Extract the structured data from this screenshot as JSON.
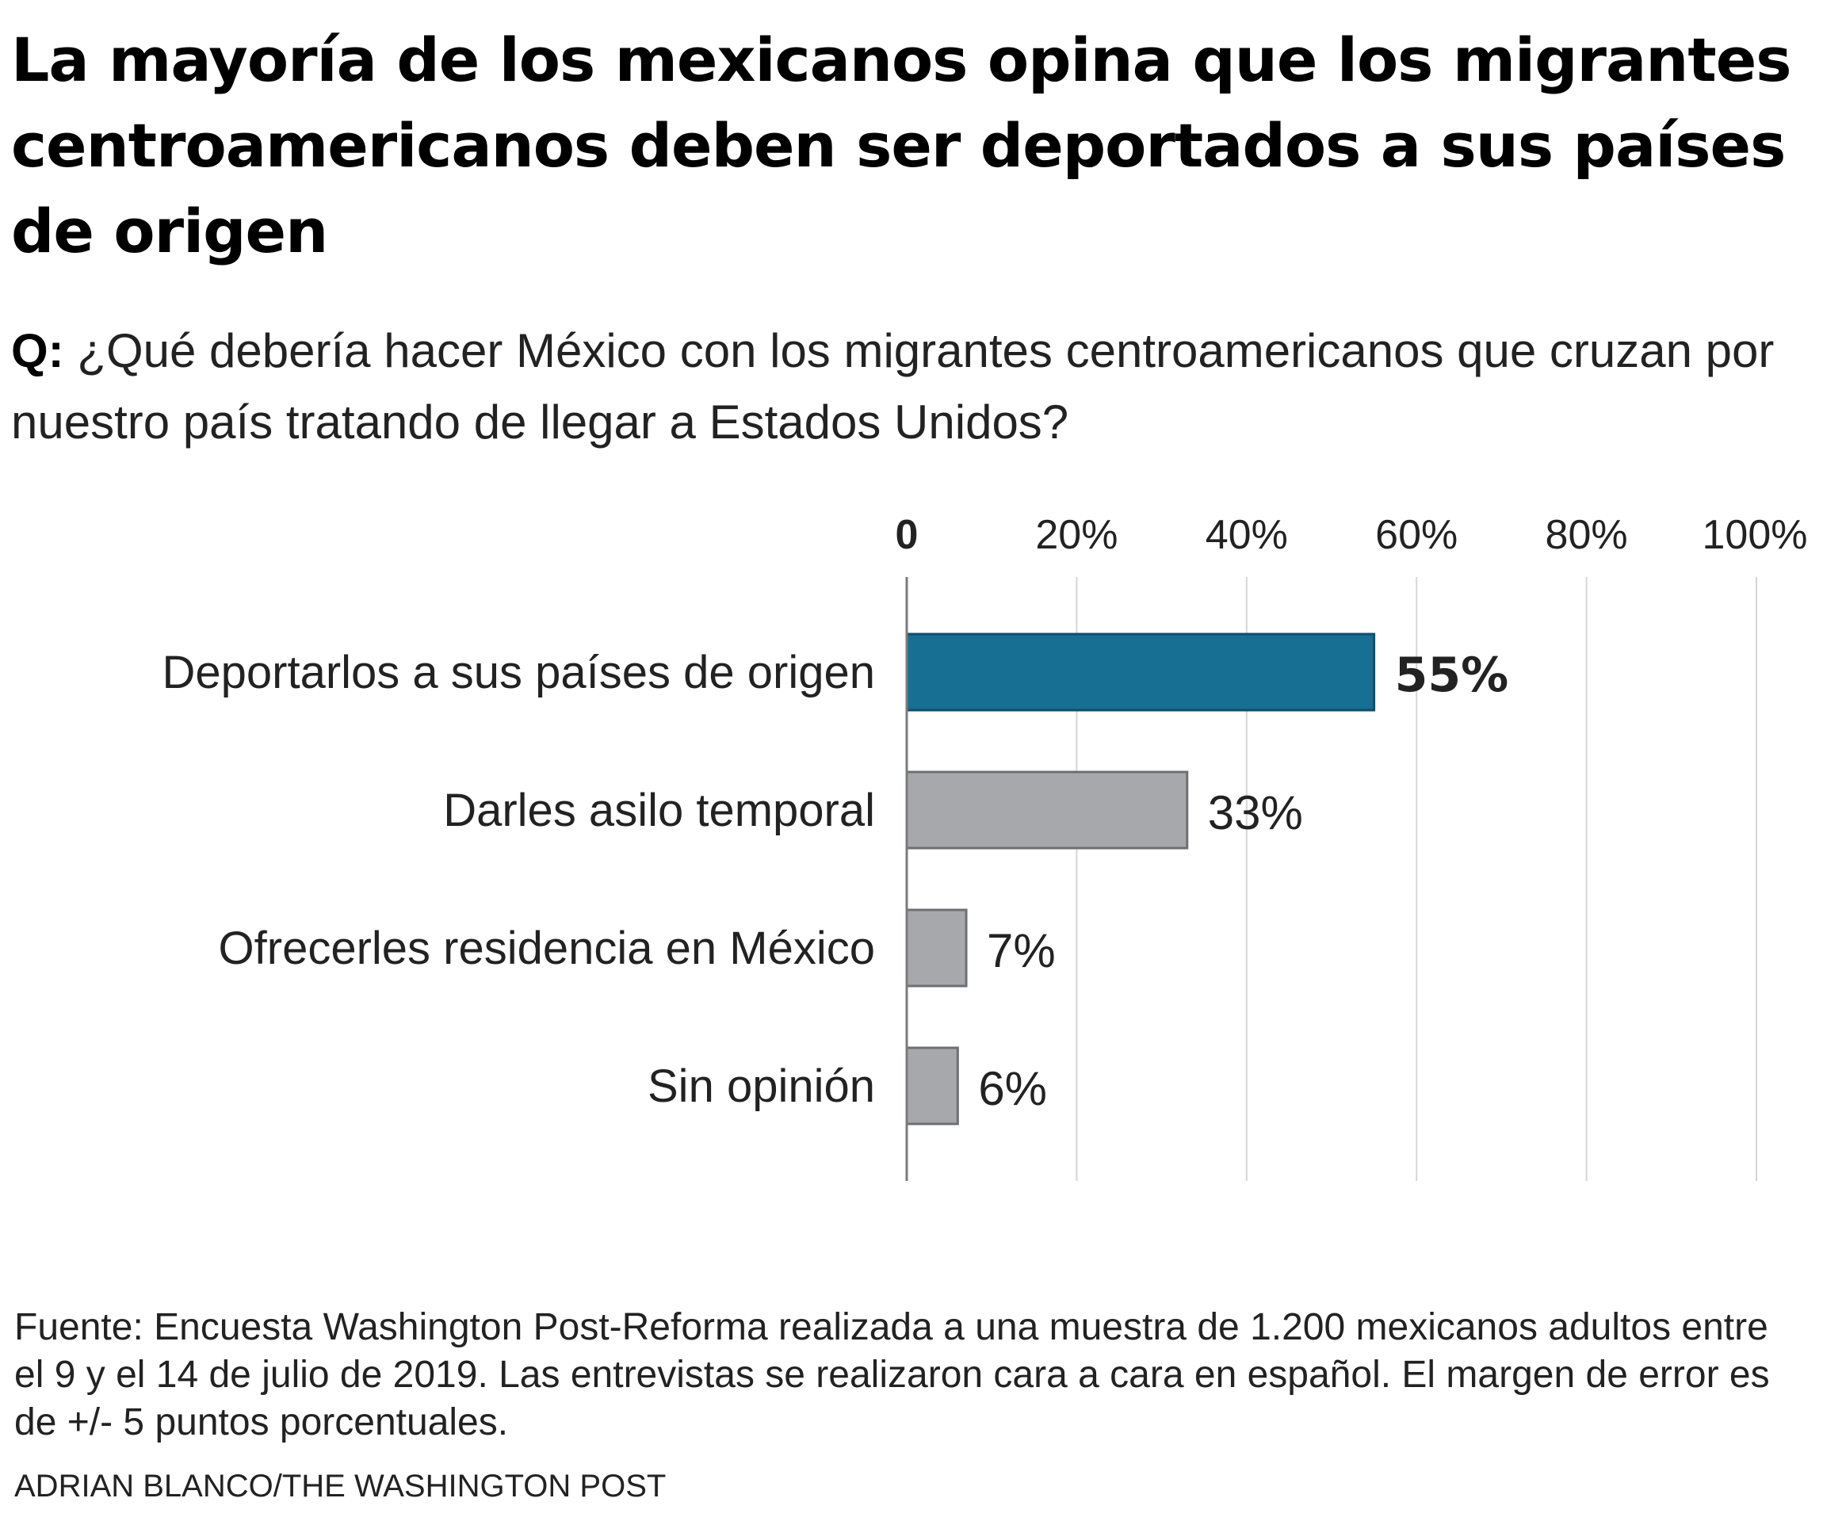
{
  "title": "La mayoría de los mexicanos opina que los migrantes centroamericanos deben ser deportados a sus países de origen",
  "question": {
    "label": "Q:",
    "text": "¿Qué debería hacer México con los migrantes centroamericanos que cruzan por nuestro país tratando de llegar a Estados Unidos?"
  },
  "chart_data": {
    "type": "bar",
    "orientation": "horizontal",
    "categories": [
      "Deportarlos a sus países de origen",
      "Darles asilo temporal",
      "Ofrecerles residencia  en México",
      "Sin opinión"
    ],
    "values": [
      55,
      33,
      7,
      6
    ],
    "value_labels": [
      "55%",
      "33%",
      "7%",
      "6%"
    ],
    "ticks": [
      0,
      20,
      40,
      60,
      80,
      100
    ],
    "tick_labels": [
      "0",
      "20%",
      "40%",
      "60%",
      "80%",
      "100%"
    ],
    "xlim": [
      0,
      100
    ],
    "grid": true,
    "highlight_index": 0,
    "colors": {
      "highlight": "#176f94",
      "highlight_stroke": "#0f4f6b",
      "bar": "#a7a8ab",
      "bar_stroke": "#6e6f72",
      "grid": "#d6d6d6",
      "axis": "#7a7a7a"
    }
  },
  "note": "Fuente: Encuesta Washington Post-Reforma realizada a una muestra de 1.200 mexicanos adultos entre el 9 y el 14 de julio de 2019. Las entrevistas se realizaron cara a cara en español. El margen de error es de +/- 5 puntos porcentuales.",
  "credit": "ADRIAN BLANCO/THE WASHINGTON POST"
}
